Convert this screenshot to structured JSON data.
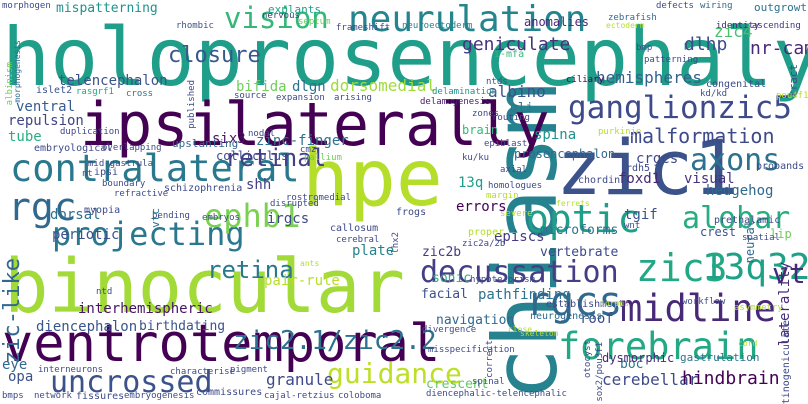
{
  "words": [
    {
      "text": "holoprosencephaly",
      "color": "#1f9e89"
    },
    {
      "text": "binocular",
      "color": "#a2da37"
    },
    {
      "text": "ventrotemporal",
      "color": "#440154"
    },
    {
      "text": "chiasm",
      "color": "#26828e"
    },
    {
      "text": "hpe",
      "color": "#b5de2b"
    },
    {
      "text": "ipsilaterally",
      "color": "#440154"
    },
    {
      "text": "zic1",
      "color": "#3b528b"
    },
    {
      "text": "neurulation",
      "color": "#25858e"
    },
    {
      "text": "contralateral",
      "color": "#2a788e"
    },
    {
      "text": "ganglionzic5",
      "color": "#3e4a89"
    },
    {
      "text": "midline",
      "color": "#482878"
    },
    {
      "text": "zic2.1/zic2.2",
      "color": "#2c728e"
    },
    {
      "text": "forebrain",
      "color": "#22a884"
    },
    {
      "text": "uncrossed",
      "color": "#3b528b"
    },
    {
      "text": "rgcs",
      "color": "#31688e"
    },
    {
      "text": "13q32",
      "color": "#1fa187"
    },
    {
      "text": "zic3",
      "color": "#22a884"
    },
    {
      "text": "projecting",
      "color": "#2a788e"
    },
    {
      "text": "optic",
      "color": "#1f9e89"
    },
    {
      "text": "vision",
      "color": "#35b779"
    },
    {
      "text": "rgc",
      "color": "#31688e"
    },
    {
      "text": "ephb1",
      "color": "#7ad151"
    },
    {
      "text": "alobar",
      "color": "#27ad81"
    },
    {
      "text": "axons",
      "color": "#2c728e"
    },
    {
      "text": "guidance",
      "color": "#bddf26"
    },
    {
      "text": "decussation",
      "color": "#433e85"
    },
    {
      "text": "retina",
      "color": "#2a788e"
    },
    {
      "text": "malformation",
      "color": "#3e4a89"
    },
    {
      "text": "retinal",
      "color": "#433e85"
    },
    {
      "text": "zic-like",
      "color": "#31688e"
    },
    {
      "text": "vt",
      "color": "#482878"
    },
    {
      "text": "closure",
      "color": "#38588c"
    },
    {
      "text": "geniculate",
      "color": "#46327e"
    },
    {
      "text": "dlhp",
      "color": "#3e4a89"
    },
    {
      "text": "zic4",
      "color": "#4ac16d"
    },
    {
      "text": "nr-cam",
      "color": "#482878"
    },
    {
      "text": "telencephalon",
      "color": "#3b528b"
    },
    {
      "text": "hemispheres",
      "color": "#355f8d"
    },
    {
      "text": "bifida",
      "color": "#6ece58"
    },
    {
      "text": "dlgn",
      "color": "#2c728e"
    },
    {
      "text": "dorsomedial",
      "color": "#9fda3a"
    },
    {
      "text": "albino",
      "color": "#3b528b"
    },
    {
      "text": "ventral",
      "color": "#365c8d"
    },
    {
      "text": "repulsion",
      "color": "#414487"
    },
    {
      "text": "tube",
      "color": "#29af7f"
    },
    {
      "text": "gli",
      "color": "#2a788e"
    },
    {
      "text": "six3",
      "color": "#471365"
    },
    {
      "text": "zinc-finger",
      "color": "#2c728e"
    },
    {
      "text": "spina",
      "color": "#20928c"
    },
    {
      "text": "crgcs",
      "color": "#3e4a89"
    },
    {
      "text": "shh",
      "color": "#433e85"
    },
    {
      "text": "13q",
      "color": "#1f9e89"
    },
    {
      "text": "foxd1",
      "color": "#482878"
    },
    {
      "text": "visual",
      "color": "#46327e"
    },
    {
      "text": "hedgehog",
      "color": "#31688e"
    },
    {
      "text": "dorsal",
      "color": "#2c728e"
    },
    {
      "text": "periotic",
      "color": "#3b528b"
    },
    {
      "text": "errors",
      "color": "#440154"
    },
    {
      "text": "irgcs",
      "color": "#3e4a89"
    },
    {
      "text": "plate",
      "color": "#26828e"
    },
    {
      "text": "tgif",
      "color": "#3b528b"
    },
    {
      "text": "vertebrate",
      "color": "#3e4a89"
    },
    {
      "text": "zic2b",
      "color": "#443a83"
    },
    {
      "text": "episcs",
      "color": "#443a83"
    },
    {
      "text": "microforms",
      "color": "#2c728e"
    },
    {
      "text": "crest",
      "color": "#3b528b"
    },
    {
      "text": "neural",
      "color": "#31688e"
    },
    {
      "text": "lip",
      "color": "#6ece58"
    },
    {
      "text": "navigation",
      "color": "#31688e"
    },
    {
      "text": "interhemispheric",
      "color": "#481467"
    },
    {
      "text": "pathfinding",
      "color": "#2c728e"
    },
    {
      "text": "roof",
      "color": "#3e4a89"
    },
    {
      "text": "laterality",
      "color": "#472c7a"
    },
    {
      "text": "diencephalon",
      "color": "#39558c"
    },
    {
      "text": "birthdating",
      "color": "#3b528b"
    },
    {
      "text": "pair-rule",
      "color": "#b8de29"
    },
    {
      "text": "sonic",
      "color": "#29af7f"
    },
    {
      "text": "facial",
      "color": "#3b528b"
    },
    {
      "text": "opa",
      "color": "#3b528b"
    },
    {
      "text": "granule",
      "color": "#3e4a89"
    },
    {
      "text": "crescent",
      "color": "#5ec962"
    },
    {
      "text": "cerebellar",
      "color": "#3e4a89"
    },
    {
      "text": "hindbrain",
      "color": "#440154"
    },
    {
      "text": "boc",
      "color": "#2a788e"
    },
    {
      "text": "eye",
      "color": "#31688e"
    },
    {
      "text": "dysmorphic",
      "color": "#482878"
    },
    {
      "text": "gastrulation",
      "color": "#2c728e"
    },
    {
      "text": "tract",
      "color": "#3e4a89"
    },
    {
      "text": "vtc",
      "color": "#2c728e"
    },
    {
      "text": "rhombic",
      "color": "#3b528b"
    },
    {
      "text": "mispatterning",
      "color": "#20928c"
    },
    {
      "text": "anomalies",
      "color": "#482878"
    },
    {
      "text": "zebrafish",
      "color": "#31688e"
    },
    {
      "text": "ascending",
      "color": "#46327e"
    },
    {
      "text": "identity",
      "color": "#482878"
    },
    {
      "text": "morphogen",
      "color": "#3e4a89"
    },
    {
      "text": "explants",
      "color": "#1fa187"
    },
    {
      "text": "nervous",
      "color": "#443a83"
    },
    {
      "text": "septum",
      "color": "#6ece58"
    },
    {
      "text": "neuroectoderm",
      "color": "#26828e"
    },
    {
      "text": "frameshift",
      "color": "#3e4a89"
    },
    {
      "text": "defects",
      "color": "#3e4a89"
    },
    {
      "text": "wiring",
      "color": "#31688e"
    },
    {
      "text": "outgrowth",
      "color": "#2c728e"
    },
    {
      "text": "albinism",
      "color": "#6ece58"
    },
    {
      "text": "rasgrf1",
      "color": "#22a884"
    },
    {
      "text": "cross",
      "color": "#2c728e"
    },
    {
      "text": "islet2",
      "color": "#39558c"
    },
    {
      "text": "morphogenesis",
      "color": "#31688e"
    },
    {
      "text": "i-mfa",
      "color": "#35b779"
    },
    {
      "text": "ntds",
      "color": "#3b528b"
    },
    {
      "text": "ciliary",
      "color": "#440154"
    },
    {
      "text": "congenital",
      "color": "#3e4a89"
    },
    {
      "text": "kd/kd",
      "color": "#3b528b"
    },
    {
      "text": "routing",
      "color": "#3e4a89"
    },
    {
      "text": "published",
      "color": "#3e4a89"
    },
    {
      "text": "delamination",
      "color": "#21918c"
    },
    {
      "text": "source",
      "color": "#3e4a89"
    },
    {
      "text": "expansion",
      "color": "#3e4a89"
    },
    {
      "text": "arising",
      "color": "#3e4a89"
    },
    {
      "text": "delamogenesis",
      "color": "#481a6c"
    },
    {
      "text": "zones",
      "color": "#3e4a89"
    },
    {
      "text": "brain",
      "color": "#35b779"
    },
    {
      "text": "purkinje",
      "color": "#b5de2b"
    },
    {
      "text": "pou4f1",
      "color": "#b5de2b"
    },
    {
      "text": "duplication",
      "color": "#3e4a89"
    },
    {
      "text": "upslanting",
      "color": "#31688e"
    },
    {
      "text": "nodal",
      "color": "#3e4a89"
    },
    {
      "text": "epiblast",
      "color": "#3e4a89"
    },
    {
      "text": "embryological",
      "color": "#3e4a89"
    },
    {
      "text": "overlapping",
      "color": "#3e4a89"
    },
    {
      "text": "colliculus",
      "color": "#3e4a89"
    },
    {
      "text": "ku/ku",
      "color": "#3e4a89"
    },
    {
      "text": "prosencephalon",
      "color": "#31688e"
    },
    {
      "text": "probands",
      "color": "#3e4a89"
    },
    {
      "text": "cmz",
      "color": "#3e4a89"
    },
    {
      "text": "pallium",
      "color": "#6ece58"
    },
    {
      "text": "mid-gastrula",
      "color": "#3e4a89"
    },
    {
      "text": "ipsi",
      "color": "#3e4a89"
    },
    {
      "text": "nt",
      "color": "#3e4a89"
    },
    {
      "text": "boundary",
      "color": "#3e4a89"
    },
    {
      "text": "schizophrenia",
      "color": "#3e4a89"
    },
    {
      "text": "refractive",
      "color": "#3e4a89"
    },
    {
      "text": "rostromedial",
      "color": "#3e4a89"
    },
    {
      "text": "axial",
      "color": "#3e4a89"
    },
    {
      "text": "homologues",
      "color": "#3e4a89"
    },
    {
      "text": "chordin",
      "color": "#3e4a89"
    },
    {
      "text": "rdh5",
      "color": "#3e4a89"
    },
    {
      "text": "margin",
      "color": "#b5de2b"
    },
    {
      "text": "ferrets",
      "color": "#b5de2b"
    },
    {
      "text": "prethalamic",
      "color": "#3e4a89"
    },
    {
      "text": "myopia",
      "color": "#3e4a89"
    },
    {
      "text": "bending",
      "color": "#3e4a89"
    },
    {
      "text": "embryos",
      "color": "#3e4a89"
    },
    {
      "text": "disrupted",
      "color": "#3e4a89"
    },
    {
      "text": "frogs",
      "color": "#3e4a89"
    },
    {
      "text": "wnt",
      "color": "#3e4a89"
    },
    {
      "text": "spatial",
      "color": "#3e4a89"
    },
    {
      "text": "severe",
      "color": "#b5de2b"
    },
    {
      "text": "callosum",
      "color": "#3e4a89"
    },
    {
      "text": "cerebral",
      "color": "#3e4a89"
    },
    {
      "text": "lhx2",
      "color": "#3e4a89"
    },
    {
      "text": "proper",
      "color": "#b5de2b"
    },
    {
      "text": "zic2a/2b",
      "color": "#3e4a89"
    },
    {
      "text": "hypotelorism",
      "color": "#3e4a89"
    },
    {
      "text": "ants",
      "color": "#b5de2b"
    },
    {
      "text": "establishment",
      "color": "#3e4a89"
    },
    {
      "text": "neurogenesis",
      "color": "#31688e"
    },
    {
      "text": "workflow",
      "color": "#3e4a89"
    },
    {
      "text": "corpus",
      "color": "#b5de2b"
    },
    {
      "text": "asymmetry",
      "color": "#b5de2b"
    },
    {
      "text": "retinogeniculate",
      "color": "#3e4a89"
    },
    {
      "text": "ntd",
      "color": "#3e4a89"
    },
    {
      "text": "divergence",
      "color": "#3e4a89"
    },
    {
      "text": "skeleton",
      "color": "#b5de2b"
    },
    {
      "text": "close",
      "color": "#b5de2b"
    },
    {
      "text": "cord",
      "color": "#b5de2b"
    },
    {
      "text": "correct",
      "color": "#3e4a89"
    },
    {
      "text": "interneurons",
      "color": "#3e4a89"
    },
    {
      "text": "characterise",
      "color": "#3e4a89"
    },
    {
      "text": "pigment",
      "color": "#3e4a89"
    },
    {
      "text": "misspecification",
      "color": "#3e4a89"
    },
    {
      "text": "spinal",
      "color": "#3e4a89"
    },
    {
      "text": "otocyst",
      "color": "#3e4a89"
    },
    {
      "text": "sox2/pou3f1",
      "color": "#3e4a89"
    },
    {
      "text": "bmps",
      "color": "#3e4a89"
    },
    {
      "text": "network",
      "color": "#3e4a89"
    },
    {
      "text": "fissures",
      "color": "#3e4a89"
    },
    {
      "text": "embryogenesis",
      "color": "#3e4a89"
    },
    {
      "text": "commissures",
      "color": "#3e4a89"
    },
    {
      "text": "cajal-retzius",
      "color": "#3e4a89"
    },
    {
      "text": "coloboma",
      "color": "#3e4a89"
    },
    {
      "text": "diencephalic-telencephalic",
      "color": "#3e4a89"
    },
    {
      "text": "patterning",
      "color": "#3e4a89"
    },
    {
      "text": "bmp",
      "color": "#3e4a89"
    },
    {
      "text": "ectoderm",
      "color": "#b5de2b"
    }
  ]
}
